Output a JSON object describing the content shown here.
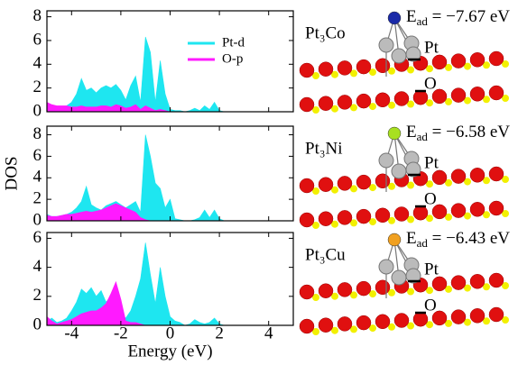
{
  "chart_data": [
    {
      "type": "area",
      "legend": "upper right",
      "x": [
        -5,
        -4.8,
        -4.6,
        -4.4,
        -4.2,
        -4,
        -3.8,
        -3.6,
        -3.4,
        -3.2,
        -3,
        -2.8,
        -2.6,
        -2.4,
        -2.2,
        -2,
        -1.8,
        -1.6,
        -1.4,
        -1.2,
        -1,
        -0.8,
        -0.6,
        -0.4,
        -0.2,
        0,
        0.2,
        0.4,
        0.6,
        0.8,
        1,
        1.2,
        1.4,
        1.6,
        1.8,
        2,
        2.2,
        2.4,
        2.6,
        2.8,
        3,
        3.2,
        3.4,
        3.6,
        3.8,
        4,
        4.2,
        4.4,
        4.6,
        4.8,
        5
      ],
      "series": [
        {
          "name": "Pt-d",
          "color": "#1ee6f0",
          "values": [
            0.5,
            0.4,
            0.4,
            0.4,
            0.5,
            0.8,
            1.5,
            2.8,
            1.8,
            2.0,
            1.6,
            2.0,
            2.2,
            2.0,
            2.3,
            1.8,
            1.0,
            2.2,
            3.0,
            0.8,
            6.3,
            5.0,
            0.8,
            4.3,
            1.5,
            0.2,
            0.1,
            0.1,
            0,
            0.1,
            0.3,
            0.1,
            0.5,
            0.2,
            0.8,
            0.1,
            0,
            0,
            0,
            0,
            0,
            0,
            0,
            0,
            0,
            0,
            0,
            0,
            0,
            0,
            0
          ]
        },
        {
          "name": "O-p",
          "color": "#ff1aff",
          "values": [
            0.8,
            0.6,
            0.5,
            0.5,
            0.5,
            0.4,
            0.4,
            0.5,
            0.4,
            0.4,
            0.4,
            0.5,
            0.5,
            0.4,
            0.6,
            0.5,
            0.3,
            0.4,
            0.6,
            0.2,
            0.5,
            0.3,
            0.1,
            0.2,
            0.1,
            0,
            0,
            0,
            0,
            0,
            0,
            0,
            0,
            0,
            0,
            0,
            0,
            0,
            0,
            0,
            0,
            0,
            0,
            0,
            0,
            0,
            0,
            0,
            0,
            0,
            0
          ]
        }
      ],
      "xlim": [
        -5,
        5
      ],
      "xticks": [
        -4,
        -2,
        0,
        2,
        4
      ],
      "ylim": [
        0,
        8.5
      ],
      "yticks": [
        0,
        2,
        4,
        6,
        8
      ]
    },
    {
      "type": "area",
      "ylabel": "DOS",
      "x": [
        -5,
        -4.8,
        -4.6,
        -4.4,
        -4.2,
        -4,
        -3.8,
        -3.6,
        -3.4,
        -3.2,
        -3,
        -2.8,
        -2.6,
        -2.4,
        -2.2,
        -2,
        -1.8,
        -1.6,
        -1.4,
        -1.2,
        -1,
        -0.8,
        -0.6,
        -0.4,
        -0.2,
        0,
        0.2,
        0.4,
        0.6,
        0.8,
        1,
        1.2,
        1.4,
        1.6,
        1.8,
        2,
        2.2,
        2.4,
        2.6,
        2.8,
        3,
        3.2,
        3.4,
        3.6,
        3.8,
        4,
        4.2,
        4.4,
        4.6,
        4.8,
        5
      ],
      "series": [
        {
          "name": "Pt-d",
          "color": "#1ee6f0",
          "values": [
            0.6,
            0.4,
            0.4,
            0.5,
            0.6,
            0.8,
            1.2,
            1.8,
            3.2,
            1.5,
            1.2,
            1.0,
            1.4,
            1.6,
            1.8,
            1.5,
            1.2,
            1.5,
            1.8,
            0.8,
            8.0,
            6.0,
            3.5,
            3.0,
            1.2,
            2.0,
            0.2,
            0.1,
            0,
            0,
            0.1,
            0.3,
            1.0,
            0.3,
            1.0,
            0.2,
            0,
            0,
            0,
            0,
            0,
            0,
            0,
            0,
            0,
            0,
            0,
            0,
            0,
            0,
            0
          ]
        },
        {
          "name": "O-p",
          "color": "#ff1aff",
          "values": [
            0.5,
            0.4,
            0.4,
            0.5,
            0.6,
            0.6,
            0.7,
            0.8,
            0.9,
            0.8,
            0.9,
            1.0,
            1.2,
            1.4,
            1.6,
            1.4,
            1.2,
            1.0,
            0.8,
            0.3,
            0.1,
            0,
            0,
            0,
            0,
            0,
            0,
            0,
            0,
            0,
            0,
            0,
            0,
            0,
            0,
            0,
            0,
            0,
            0,
            0,
            0,
            0,
            0,
            0,
            0,
            0,
            0,
            0,
            0,
            0,
            0
          ]
        }
      ],
      "xlim": [
        -5,
        5
      ],
      "xticks": [
        -4,
        -2,
        0,
        2,
        4
      ],
      "ylim": [
        0,
        8.8
      ],
      "yticks": [
        0,
        2,
        4,
        6,
        8
      ]
    },
    {
      "type": "area",
      "xlabel": "Energy (eV)",
      "x": [
        -5,
        -4.8,
        -4.6,
        -4.4,
        -4.2,
        -4,
        -3.8,
        -3.6,
        -3.4,
        -3.2,
        -3,
        -2.8,
        -2.6,
        -2.4,
        -2.2,
        -2,
        -1.8,
        -1.6,
        -1.4,
        -1.2,
        -1,
        -0.8,
        -0.6,
        -0.4,
        -0.2,
        0,
        0.2,
        0.4,
        0.6,
        0.8,
        1,
        1.2,
        1.4,
        1.6,
        1.8,
        2,
        2.2,
        2.4,
        2.6,
        2.8,
        3,
        3.2,
        3.4,
        3.6,
        3.8,
        4,
        4.2,
        4.4,
        4.6,
        4.8,
        5
      ],
      "series": [
        {
          "name": "Pt-d",
          "color": "#1ee6f0",
          "values": [
            0.3,
            0.5,
            0.2,
            0.3,
            0.5,
            1.0,
            1.6,
            2.5,
            2.2,
            2.6,
            2.0,
            2.4,
            1.6,
            2.0,
            1.8,
            0.8,
            0.5,
            1.0,
            2.0,
            3.2,
            5.7,
            3.5,
            1.5,
            4.0,
            2.0,
            0.6,
            0.3,
            0.2,
            0,
            0.1,
            0.4,
            0.2,
            0.1,
            0.2,
            0.5,
            0.1,
            0,
            0,
            0,
            0,
            0,
            0,
            0,
            0,
            0,
            0,
            0,
            0,
            0,
            0,
            0
          ]
        },
        {
          "name": "O-p",
          "color": "#ff1aff",
          "values": [
            0.6,
            0.3,
            0.1,
            0.2,
            0.3,
            0.4,
            0.6,
            0.8,
            0.9,
            1.0,
            1.0,
            1.2,
            1.5,
            2.2,
            3.0,
            1.8,
            0.3,
            0.2,
            0.2,
            0.1,
            0,
            0,
            0,
            0,
            0,
            0,
            0,
            0,
            0,
            0,
            0,
            0,
            0,
            0,
            0,
            0,
            0,
            0,
            0,
            0,
            0,
            0,
            0,
            0,
            0,
            0,
            0,
            0,
            0,
            0,
            0
          ]
        }
      ],
      "xlim": [
        -5,
        5
      ],
      "xticks": [
        -4,
        -2,
        0,
        2,
        4
      ],
      "ylim": [
        0,
        6.4
      ],
      "yticks": [
        0,
        2,
        4,
        6
      ]
    }
  ],
  "structures": [
    {
      "name": "Pt₃Co",
      "energy": {
        "symbol": "E",
        "subscript": "ad",
        "text": " = −7.67 eV"
      },
      "atom_labels": [
        "Pt",
        "O"
      ]
    },
    {
      "name": "Pt₃Ni",
      "energy": {
        "symbol": "E",
        "subscript": "ad",
        "text": " = −6.58 eV"
      },
      "atom_labels": [
        "Pt",
        "O"
      ]
    },
    {
      "name": "Pt₃Cu",
      "energy": {
        "symbol": "E",
        "subscript": "ad",
        "text": " = −6.43 eV"
      },
      "atom_labels": [
        "Pt",
        "O"
      ]
    }
  ]
}
